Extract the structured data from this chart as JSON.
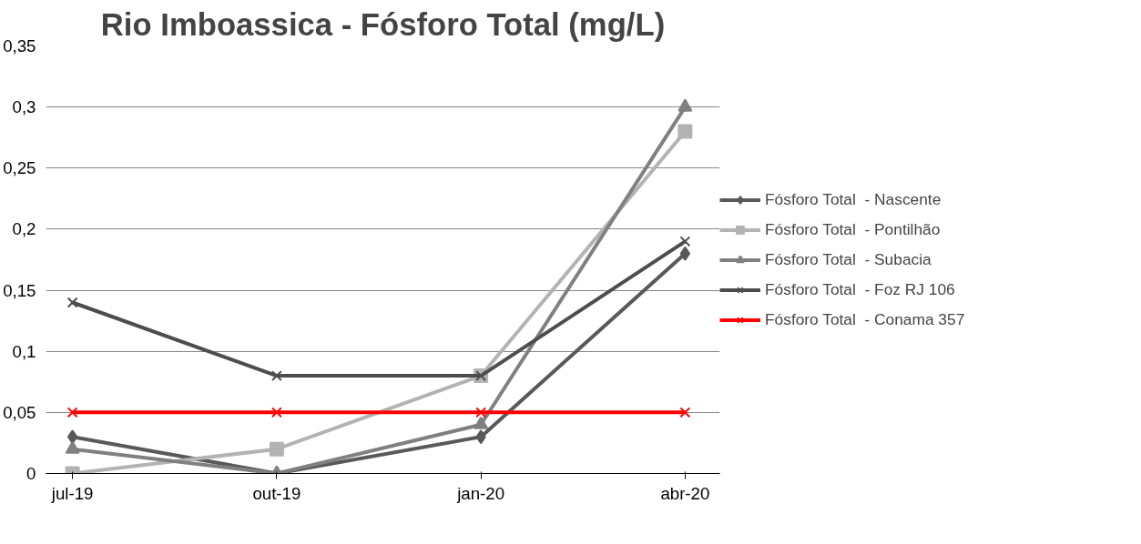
{
  "chart_data": {
    "type": "line",
    "title": "Rio Imboassica - Fósforo Total (mg/L)",
    "categories": [
      "jul-19",
      "out-19",
      "jan-20",
      "abr-20"
    ],
    "series": [
      {
        "name": "Fósforo Total  - Nascente",
        "color": "#595959",
        "marker": "diamond",
        "values": [
          0.03,
          0,
          0.03,
          0.18
        ]
      },
      {
        "name": "Fósforo Total  - Pontilhão",
        "color": "#b3b3b3",
        "marker": "square",
        "values": [
          0,
          0.02,
          0.08,
          0.28
        ]
      },
      {
        "name": "Fósforo Total  - Subacia",
        "color": "#808080",
        "marker": "triangle",
        "values": [
          0.02,
          0,
          0.04,
          0.3
        ]
      },
      {
        "name": "Fósforo Total  - Foz RJ 106",
        "color": "#4d4d4d",
        "marker": "cross",
        "values": [
          0.14,
          0.08,
          0.08,
          0.19
        ]
      },
      {
        "name": "Fósforo Total  - Conama 357",
        "color": "#ff0000",
        "marker": "cross",
        "values": [
          0.05,
          0.05,
          0.05,
          0.05
        ]
      }
    ],
    "ylim": [
      0,
      0.35
    ],
    "yticks": [
      0,
      {
        "value": 0.05,
        "label": "0,05"
      },
      {
        "value": 0.1,
        "label": "0,1"
      },
      {
        "value": 0.15,
        "label": "0,15"
      },
      {
        "value": 0.2,
        "label": "0,2"
      },
      {
        "value": 0.25,
        "label": "0,25"
      },
      {
        "value": 0.3,
        "label": "0,3"
      },
      {
        "value": 0.35,
        "label": "0,35"
      }
    ],
    "grid": "y",
    "legend": "right"
  }
}
